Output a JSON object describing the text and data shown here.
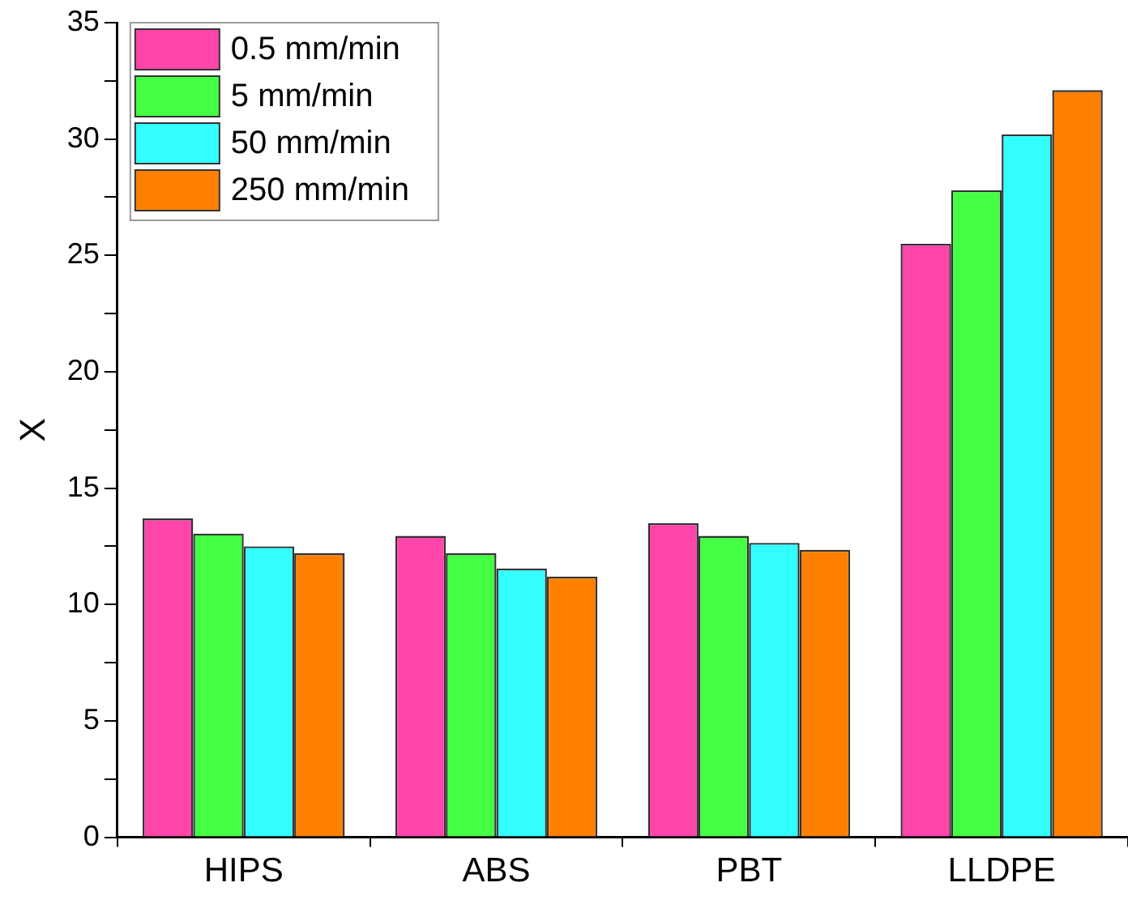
{
  "chart_data": {
    "type": "bar",
    "ylabel": "X",
    "categories": [
      "HIPS",
      "ABS",
      "PBT",
      "LLDPE"
    ],
    "series": [
      {
        "name": "0.5 mm/min",
        "color": "#ff44aa",
        "values": [
          13.7,
          12.95,
          13.5,
          25.5
        ]
      },
      {
        "name": "5 mm/min",
        "color": "#44ff44",
        "values": [
          13.05,
          12.2,
          12.95,
          27.8
        ]
      },
      {
        "name": "50 mm/min",
        "color": "#33ffff",
        "values": [
          12.5,
          11.55,
          12.65,
          30.2
        ]
      },
      {
        "name": "250 mm/min",
        "color": "#ff8000",
        "values": [
          12.2,
          11.2,
          12.35,
          32.1
        ]
      }
    ],
    "ylim": [
      0,
      35
    ],
    "yticks": [
      0,
      {
        "value": 2.5,
        "label": null
      },
      5,
      {
        "value": 7.5,
        "label": null
      },
      10,
      {
        "value": 12.5,
        "label": null
      },
      15,
      {
        "value": 17.5,
        "label": null
      },
      20,
      {
        "value": 22.5,
        "label": null
      },
      25,
      {
        "value": 27.5,
        "label": null
      },
      30,
      {
        "value": 32.5,
        "label": null
      },
      35
    ],
    "grid": false,
    "legend": "top left"
  }
}
